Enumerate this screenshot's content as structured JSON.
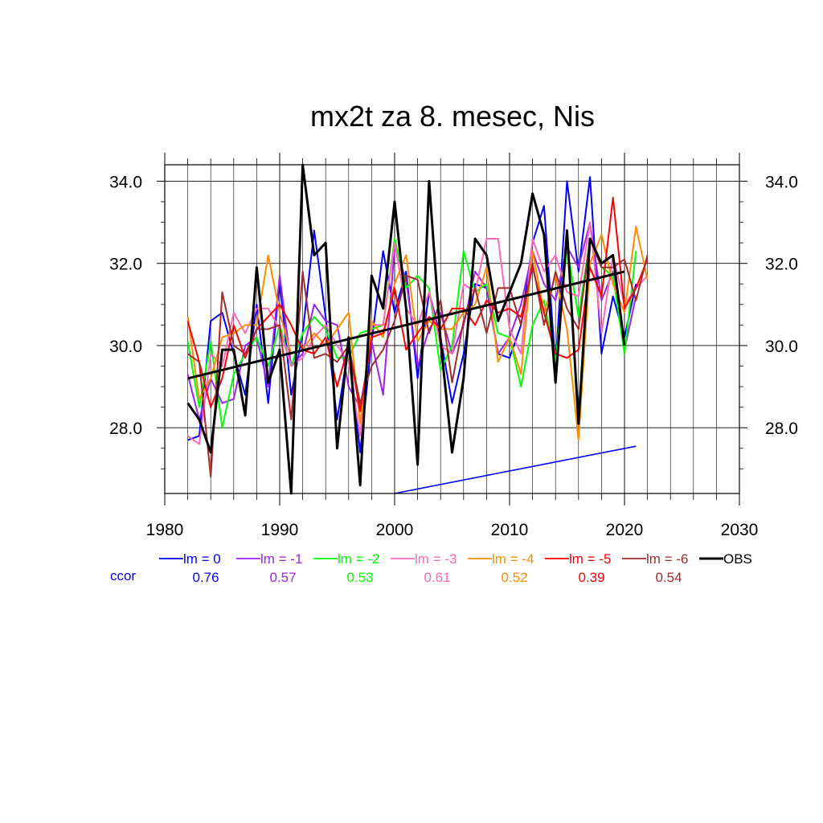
{
  "chart_data": {
    "type": "line",
    "title": "mx2t za 8. mesec, Nis",
    "xlim": [
      1980,
      2030
    ],
    "ylim": [
      26.4,
      34.4
    ],
    "x_ticks": [
      "1980",
      "1990",
      "2000",
      "2010",
      "2020",
      "2030"
    ],
    "y_ticks": [
      "28.0",
      "30.0",
      "32.0",
      "34.0"
    ],
    "grid": true,
    "legend_placement": "bottom",
    "ccor_label": "ccor",
    "years": [
      1982,
      1983,
      1984,
      1985,
      1986,
      1987,
      1988,
      1989,
      1990,
      1991,
      1992,
      1993,
      1994,
      1995,
      1996,
      1997,
      1998,
      1999,
      2000,
      2001,
      2002,
      2003,
      2004,
      2005,
      2006,
      2007,
      2008,
      2009,
      2010,
      2011,
      2012,
      2013,
      2014,
      2015,
      2016,
      2017,
      2018,
      2019,
      2020,
      2021,
      2022
    ],
    "series": [
      {
        "name": "lm = 0",
        "ccor": "0.76",
        "color": "#0000ff",
        "values": [
          27.7,
          27.8,
          30.6,
          30.8,
          29.8,
          28.8,
          31.0,
          28.6,
          31.6,
          28.8,
          30.3,
          32.8,
          30.7,
          28.2,
          30.0,
          27.4,
          30.1,
          32.3,
          30.8,
          31.8,
          29.2,
          31.3,
          30.2,
          28.6,
          29.8,
          31.5,
          31.4,
          29.8,
          29.7,
          30.5,
          32.5,
          33.4,
          29.5,
          34.0,
          31.8,
          34.1,
          29.8,
          31.2,
          30.2,
          31.5,
          null
        ]
      },
      {
        "name": "lm = -1",
        "ccor": "0.57",
        "color": "#a020f0",
        "values": [
          29.3,
          28.2,
          29.2,
          28.6,
          28.7,
          30.0,
          30.2,
          29.0,
          31.7,
          29.5,
          29.8,
          31.0,
          30.6,
          30.5,
          29.0,
          28.5,
          30.1,
          28.8,
          32.4,
          31.6,
          29.5,
          30.4,
          30.8,
          29.8,
          30.5,
          31.8,
          31.4,
          29.8,
          30.2,
          31.0,
          32.3,
          31.5,
          31.1,
          32.4,
          31.9,
          33.0,
          31.1,
          31.8,
          29.9,
          31.2,
          null
        ]
      },
      {
        "name": "lm = -2",
        "ccor": "0.53",
        "color": "#00ff00",
        "values": [
          30.1,
          28.5,
          30.1,
          28.0,
          29.3,
          29.8,
          30.2,
          29.5,
          30.5,
          29.5,
          30.3,
          30.7,
          30.4,
          29.7,
          29.7,
          30.3,
          30.4,
          30.5,
          32.6,
          31.4,
          31.7,
          31.4,
          29.4,
          30.0,
          32.3,
          31.3,
          31.5,
          30.3,
          30.2,
          29.0,
          30.5,
          31.1,
          29.6,
          32.4,
          30.7,
          32.6,
          31.9,
          31.7,
          29.8,
          32.3,
          null
        ]
      },
      {
        "name": "lm = -3",
        "ccor": "0.61",
        "color": "#ff69b4",
        "values": [
          27.8,
          27.6,
          29.8,
          29.5,
          30.8,
          30.3,
          30.9,
          30.9,
          30.4,
          29.5,
          29.7,
          30.2,
          30.5,
          30.0,
          29.6,
          27.8,
          30.5,
          30.5,
          32.5,
          30.9,
          30.5,
          31.3,
          30.0,
          29.8,
          31.5,
          31.3,
          32.6,
          32.6,
          30.4,
          29.8,
          32.6,
          31.8,
          32.2,
          31.3,
          31.2,
          33.0,
          30.3,
          32.2,
          31.0,
          31.4,
          31.7
        ]
      },
      {
        "name": "lm = -4",
        "ccor": "0.52",
        "color": "#ff8c00",
        "values": [
          30.7,
          28.7,
          29.2,
          30.2,
          30.3,
          30.5,
          30.5,
          32.2,
          30.8,
          29.8,
          29.9,
          30.3,
          30.0,
          30.4,
          30.8,
          28.1,
          30.6,
          30.2,
          31.5,
          32.2,
          30.1,
          30.6,
          30.4,
          30.4,
          30.8,
          31.0,
          31.9,
          29.6,
          30.2,
          29.3,
          32.3,
          30.8,
          31.7,
          30.4,
          27.7,
          32.0,
          32.7,
          31.5,
          30.8,
          32.9,
          31.6
        ]
      },
      {
        "name": "lm = -5",
        "ccor": "0.39",
        "color": "#ff0000",
        "values": [
          30.6,
          29.6,
          28.5,
          29.2,
          30.5,
          29.7,
          30.4,
          30.7,
          31.0,
          30.5,
          29.9,
          29.8,
          30.2,
          29.0,
          30.0,
          28.4,
          30.2,
          30.3,
          31.4,
          29.9,
          30.3,
          30.7,
          30.4,
          30.9,
          30.9,
          30.5,
          31.1,
          30.8,
          30.9,
          30.7,
          31.9,
          30.8,
          29.8,
          29.7,
          29.9,
          31.9,
          31.2,
          33.6,
          30.9,
          31.4,
          32.1
        ]
      },
      {
        "name": "lm = -6",
        "ccor": "0.54",
        "color": "#a52a2a",
        "values": [
          29.8,
          29.6,
          26.8,
          31.3,
          30.0,
          29.8,
          30.4,
          30.4,
          30.5,
          28.2,
          31.8,
          29.7,
          29.8,
          29.6,
          30.0,
          28.6,
          29.5,
          29.9,
          30.6,
          31.7,
          31.6,
          30.3,
          31.1,
          29.1,
          30.6,
          31.4,
          30.3,
          31.4,
          31.4,
          30.5,
          32.0,
          30.5,
          31.8,
          30.9,
          30.4,
          32.6,
          31.9,
          31.9,
          32.1,
          31.1,
          32.2
        ]
      },
      {
        "name": "OBS",
        "ccor": "",
        "color": "#000000",
        "values": [
          28.6,
          28.2,
          27.4,
          29.9,
          29.9,
          28.3,
          31.9,
          29.1,
          29.9,
          26.4,
          34.4,
          32.2,
          32.5,
          27.5,
          30.2,
          26.6,
          31.7,
          30.9,
          33.5,
          30.9,
          27.1,
          34.0,
          30.1,
          27.4,
          29.2,
          32.6,
          32.2,
          30.6,
          31.3,
          32.0,
          33.7,
          32.7,
          29.1,
          32.8,
          28.1,
          32.6,
          32.0,
          32.2,
          30.0,
          null,
          null
        ]
      }
    ],
    "trend_obs": {
      "x": [
        1982,
        2020
      ],
      "y": [
        29.2,
        31.8
      ]
    },
    "trend_lower": {
      "x": [
        2000,
        2021
      ],
      "y": [
        26.4,
        27.55
      ]
    }
  }
}
